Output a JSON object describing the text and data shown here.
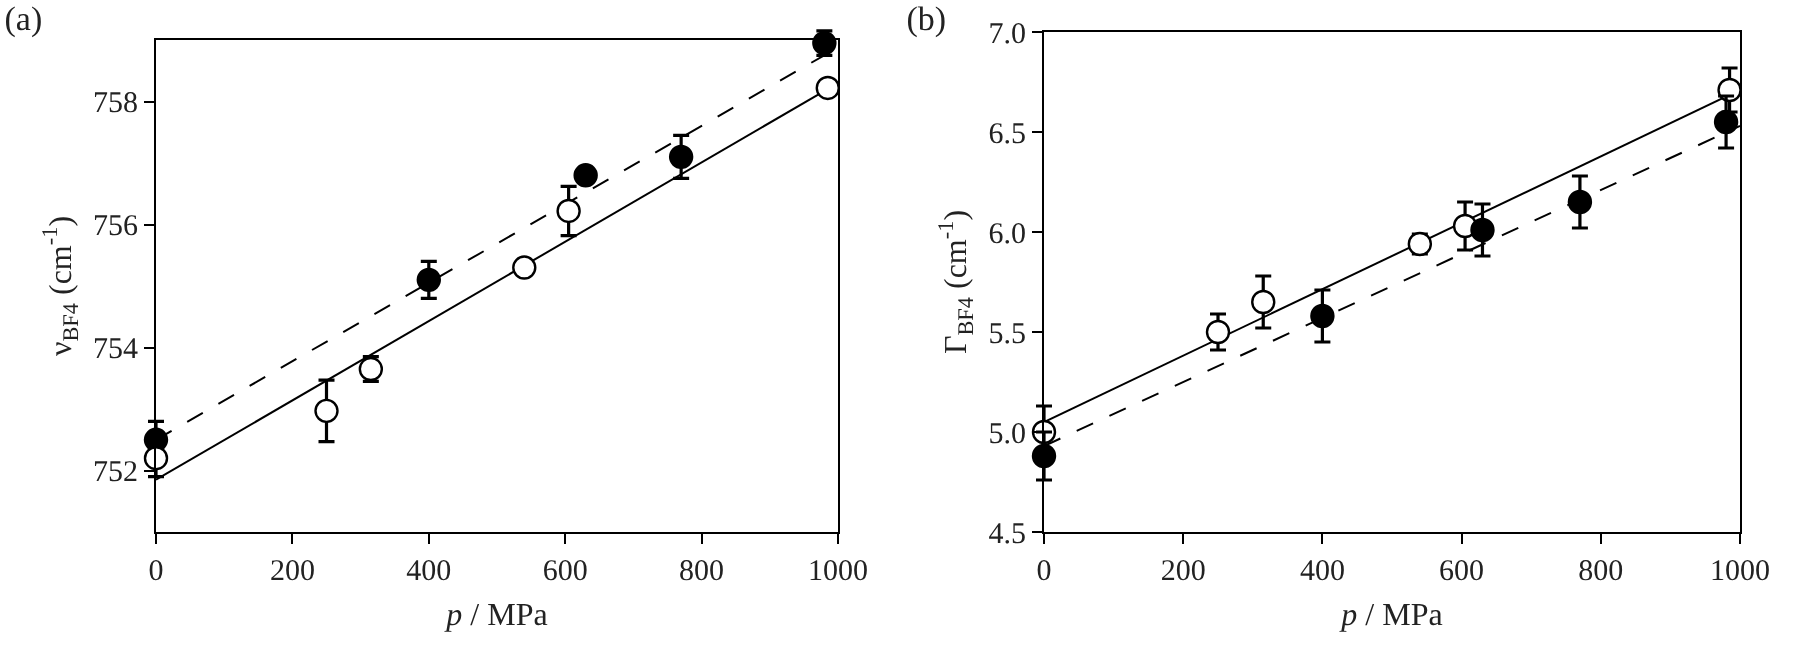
{
  "chart_data": [
    {
      "type": "scatter",
      "title": "(a)",
      "xlabel": "p / MPa",
      "ylabel": "ν$_{BF4}$ (cm$^{-1}$)",
      "xlim": [
        0,
        1000
      ],
      "xticks": [
        0,
        200,
        400,
        600,
        800,
        1000
      ],
      "ylim": [
        751,
        759
      ],
      "yticks": [
        752,
        754,
        756,
        758
      ],
      "grid": false,
      "marker": "circle",
      "series": [
        {
          "color": "#000000",
          "x": [
            0,
            400,
            630,
            770,
            980
          ],
          "values": [
            752.5,
            755.1,
            756.8,
            757.1,
            758.95
          ],
          "errors": [
            0.3,
            0.3,
            null,
            0.35,
            0.2
          ]
        },
        {
          "color": "#ffffff",
          "x": [
            0,
            250,
            315,
            540,
            605,
            985
          ],
          "values": [
            752.2,
            752.97,
            753.65,
            755.3,
            756.22,
            758.22
          ],
          "errors": [
            0.3,
            0.5,
            0.2,
            null,
            0.4,
            null
          ]
        },
        {
          "type": "line",
          "marker": "none",
          "color": "#000000",
          "line_style": "dashed",
          "x": [
            0,
            1000
          ],
          "values": [
            752.5,
            758.88
          ]
        },
        {
          "type": "line",
          "marker": "none",
          "color": "#000000",
          "line_style": "solid",
          "x": [
            0,
            1000
          ],
          "values": [
            751.85,
            758.3
          ]
        }
      ]
    },
    {
      "type": "scatter",
      "title": "(b)",
      "xlabel": "p / MPa",
      "ylabel": "Γ$_{BF4}$ (cm$^{-1}$)",
      "xlim": [
        0,
        1000
      ],
      "xticks": [
        0,
        200,
        400,
        600,
        800,
        1000
      ],
      "ylim": [
        4.5,
        7.0
      ],
      "yticks": [
        {
          "value": 4.5,
          "label": "4.5"
        },
        {
          "value": 5.0,
          "label": "5.0"
        },
        {
          "value": 5.5,
          "label": "5.5"
        },
        {
          "value": 6.0,
          "label": "6.0"
        },
        {
          "value": 6.5,
          "label": "6.5"
        },
        {
          "value": 7.0,
          "label": "7.0"
        }
      ],
      "grid": false,
      "marker": "circle",
      "series": [
        {
          "color": "#ffffff",
          "x": [
            0,
            250,
            315,
            540,
            605,
            985
          ],
          "values": [
            5.0,
            5.5,
            5.65,
            5.94,
            6.03,
            6.71
          ],
          "errors": [
            0.13,
            0.09,
            0.13,
            0.05,
            0.12,
            0.11
          ]
        },
        {
          "color": "#000000",
          "x": [
            0,
            400,
            630,
            770,
            980
          ],
          "values": [
            4.88,
            5.58,
            6.01,
            6.15,
            6.55
          ],
          "errors": [
            0.12,
            0.13,
            0.13,
            0.13,
            0.13
          ]
        },
        {
          "type": "line",
          "marker": "none",
          "color": "#000000",
          "line_style": "solid",
          "x": [
            0,
            1000
          ],
          "values": [
            5.05,
            6.71
          ]
        },
        {
          "type": "line",
          "marker": "none",
          "color": "#000000",
          "line_style": "dashed",
          "x": [
            0,
            1000
          ],
          "values": [
            4.93,
            6.53
          ]
        }
      ]
    }
  ]
}
